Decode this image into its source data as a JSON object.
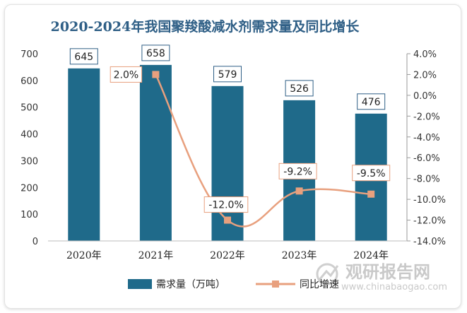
{
  "chart_data": {
    "type": "bar",
    "title": "2020-2024年我国聚羧酸减水剂需求量及同比增长",
    "categories": [
      "2020年",
      "2021年",
      "2022年",
      "2023年",
      "2024年"
    ],
    "series": [
      {
        "name": "需求量（万吨）",
        "type": "bar",
        "axis": "left",
        "values": [
          645,
          658,
          579,
          526,
          476
        ],
        "labels": [
          "645",
          "658",
          "579",
          "526",
          "476"
        ]
      },
      {
        "name": "同比增速",
        "type": "line",
        "axis": "right",
        "values": [
          null,
          2.0,
          -12.0,
          -9.2,
          -9.5
        ],
        "labels": [
          "",
          "2.0%",
          "-12.0%",
          "-9.2%",
          "-9.5%"
        ]
      }
    ],
    "ylim": [
      0,
      700
    ],
    "yticks": [
      "0",
      "100",
      "200",
      "300",
      "400",
      "500",
      "600",
      "700"
    ],
    "y2lim": [
      -14,
      4
    ],
    "y2ticks": [
      "4.0%",
      "2.0%",
      "0.0%",
      "-2.0%",
      "-4.0%",
      "-6.0%",
      "-8.0%",
      "-10.0%",
      "-12.0%",
      "-14.0%"
    ],
    "colors": {
      "bar": "#1f6a8a",
      "line": "#e8a07e",
      "title": "#2f5f86"
    },
    "legend_position": "bottom"
  },
  "watermark": {
    "name": "观研报告网",
    "url": "www.chinabaogao.com"
  }
}
